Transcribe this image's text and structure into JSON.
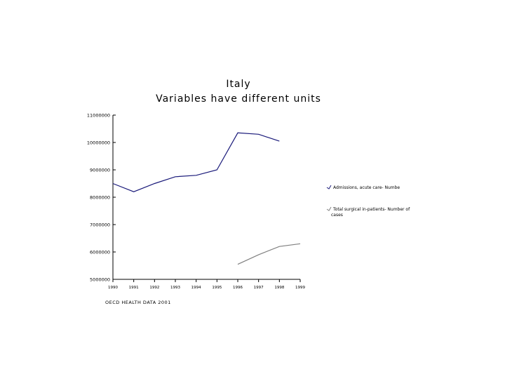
{
  "chart_data": {
    "type": "line",
    "title": "Italy",
    "subtitle": "Variables have different units",
    "x": [
      "1990",
      "1991",
      "1992",
      "1993",
      "1994",
      "1995",
      "1996",
      "1997",
      "1998",
      "1999"
    ],
    "y_ticks": [
      "11000000",
      "10000000",
      "9000000",
      "8000000",
      "7000000",
      "6000000",
      "5000000"
    ],
    "ylim": [
      5000000,
      11000000
    ],
    "series": [
      {
        "name": "Admissions, acute care- Numbe",
        "color": "#1a1a7a",
        "values": [
          8500000,
          8200000,
          8500000,
          8750000,
          8800000,
          9000000,
          10350000,
          10300000,
          10050000,
          null
        ]
      },
      {
        "name": "Total surgical in-patients- Number of cases",
        "color": "#808080",
        "values": [
          null,
          null,
          null,
          null,
          null,
          null,
          5550000,
          5900000,
          6200000,
          6300000
        ]
      }
    ],
    "legend_position": "right",
    "grid": false,
    "source": "OECD HEALTH DATA 2001"
  }
}
